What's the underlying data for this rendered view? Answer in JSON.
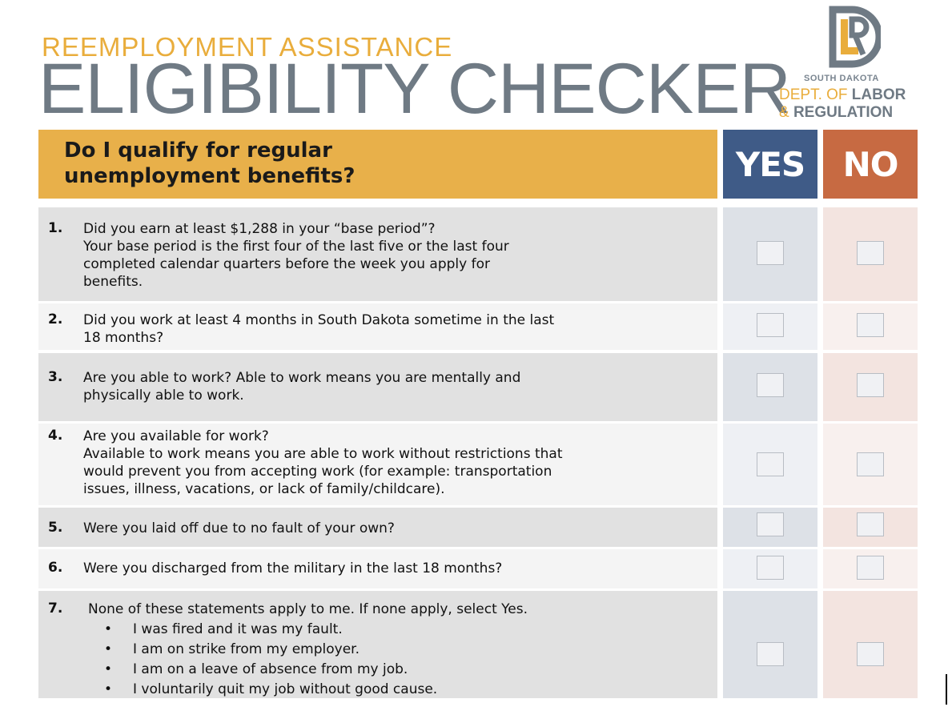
{
  "header": {
    "subtitle": "REEMPLOYMENT ASSISTANCE",
    "title": "ELIGIBILITY CHECKER"
  },
  "logo": {
    "monogram": "LR D",
    "state": "SOUTH DAKOTA",
    "dept_light": "DEPT. OF ",
    "dept_bold": "LABOR",
    "amp": "& ",
    "regulation": "REGULATION"
  },
  "table": {
    "question_line1": "Do I qualify for regular",
    "question_line2": "unemployment benefits?",
    "yes_label": "YES",
    "no_label": "NO"
  },
  "questions": [
    {
      "number": "1.",
      "lines": [
        "Did you earn at least $1,288 in your “base period”?",
        "Your base period is the first four of the last five or the last four",
        "completed calendar quarters before the week you apply for",
        "benefits."
      ]
    },
    {
      "number": "2.",
      "lines": [
        "Did you work at least 4 months in South Dakota sometime in the last",
        "18 months?"
      ]
    },
    {
      "number": "3.",
      "lines": [
        "Are you able to work? Able to work means you are mentally and",
        "physically able to work."
      ]
    },
    {
      "number": "4.",
      "lines": [
        "Are you available for work?",
        "Available to work means you are able to work without restrictions that",
        "would prevent you from accepting work (for example: transportation",
        "issues, illness, vacations, or lack of family/childcare)."
      ]
    },
    {
      "number": "5.",
      "lines": [
        "Were you laid off due to no fault of your own?"
      ]
    },
    {
      "number": "6.",
      "lines": [
        "Were you discharged from the military in the last 18 months?"
      ]
    },
    {
      "number": "7.",
      "lines": [
        "None of these statements apply to me. If none apply, select Yes."
      ],
      "bullets": [
        "I was fired and it was my fault.",
        "I am on strike from my employer.",
        "I am on a leave of absence from my job.",
        "I voluntarily quit my job without good cause."
      ]
    }
  ],
  "bullet_glyph": "•",
  "colors": {
    "accent_gold": "#e8b04a",
    "title_gray": "#6f7a84",
    "yes_blue": "#3f5b87",
    "no_orange": "#c76a42"
  }
}
